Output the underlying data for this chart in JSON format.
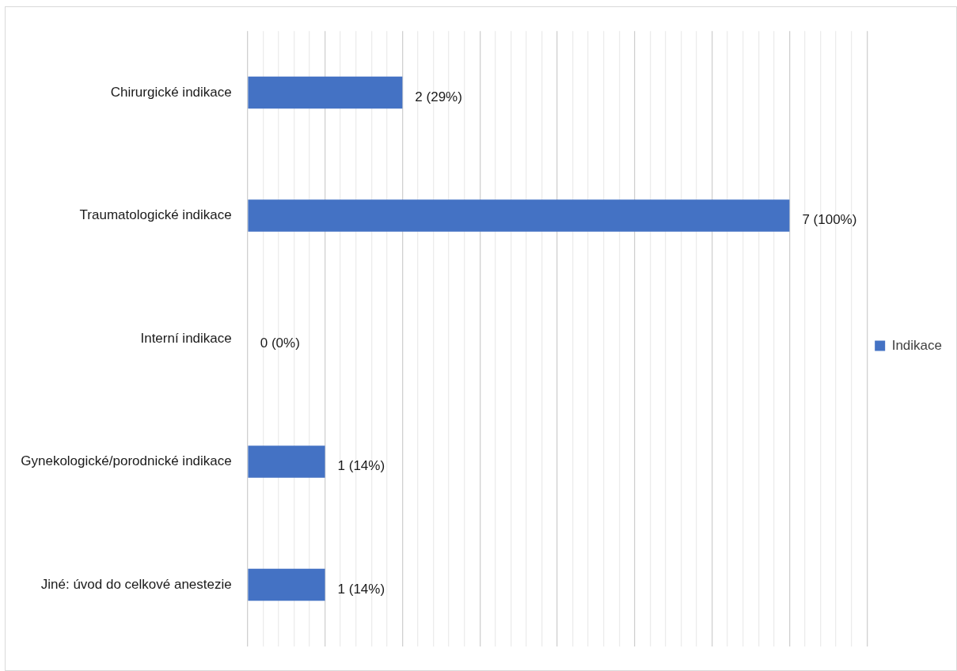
{
  "chart_data": {
    "type": "bar",
    "orientation": "horizontal",
    "categories": [
      "Chirurgické indikace",
      "Traumatologické indikace",
      "Interní indikace",
      "Gynekologické/porodnické indikace",
      "Jiné: úvod do celkové anestezie"
    ],
    "series": [
      {
        "name": "Indikace",
        "color": "#4472c4",
        "values": [
          2,
          7,
          0,
          1,
          1
        ],
        "value_labels": [
          "2 (29%)",
          "7 (100%)",
          "0 (0%)",
          "1 (14%)",
          "1 (14%)"
        ]
      }
    ],
    "xlim": [
      0,
      8
    ],
    "xticks": [
      {
        "value": 0,
        "label": null
      },
      {
        "value": 0.2,
        "label": null
      },
      {
        "value": 0.4,
        "label": null
      },
      {
        "value": 0.6,
        "label": null
      },
      {
        "value": 0.8,
        "label": null
      },
      {
        "value": 1,
        "label": null
      },
      {
        "value": 1.2,
        "label": null
      },
      {
        "value": 1.4,
        "label": null
      },
      {
        "value": 1.6,
        "label": null
      },
      {
        "value": 1.8,
        "label": null
      },
      {
        "value": 2,
        "label": null
      },
      {
        "value": 2.2,
        "label": null
      },
      {
        "value": 2.4,
        "label": null
      },
      {
        "value": 2.6,
        "label": null
      },
      {
        "value": 2.8,
        "label": null
      },
      {
        "value": 3,
        "label": null
      },
      {
        "value": 3.2,
        "label": null
      },
      {
        "value": 3.4,
        "label": null
      },
      {
        "value": 3.6,
        "label": null
      },
      {
        "value": 3.8,
        "label": null
      },
      {
        "value": 4,
        "label": null
      },
      {
        "value": 4.2,
        "label": null
      },
      {
        "value": 4.4,
        "label": null
      },
      {
        "value": 4.6,
        "label": null
      },
      {
        "value": 4.8,
        "label": null
      },
      {
        "value": 5,
        "label": null
      },
      {
        "value": 5.2,
        "label": null
      },
      {
        "value": 5.4,
        "label": null
      },
      {
        "value": 5.6,
        "label": null
      },
      {
        "value": 5.8,
        "label": null
      },
      {
        "value": 6,
        "label": null
      },
      {
        "value": 6.2,
        "label": null
      },
      {
        "value": 6.4,
        "label": null
      },
      {
        "value": 6.6,
        "label": null
      },
      {
        "value": 6.8,
        "label": null
      },
      {
        "value": 7,
        "label": null
      },
      {
        "value": 7.2,
        "label": null
      },
      {
        "value": 7.4,
        "label": null
      },
      {
        "value": 7.6,
        "label": null
      },
      {
        "value": 7.8,
        "label": null
      },
      {
        "value": 8,
        "label": null
      }
    ],
    "tick_labels": "y",
    "grid": "x",
    "legend": "right"
  }
}
